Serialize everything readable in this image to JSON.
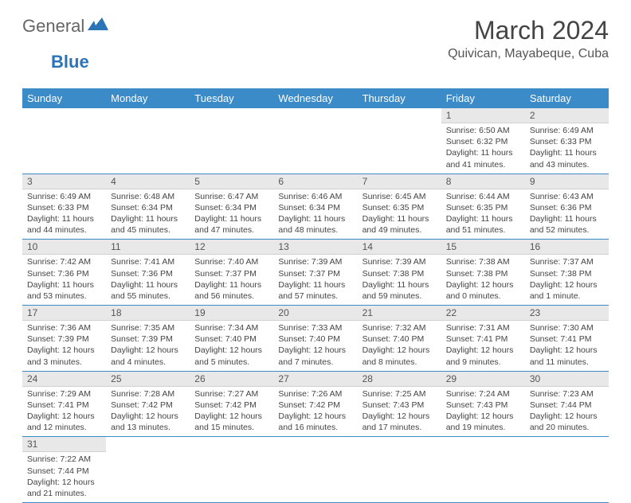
{
  "logo": {
    "part1": "General",
    "part2": "Blue"
  },
  "title": "March 2024",
  "location": "Quivican, Mayabeque, Cuba",
  "colors": {
    "header_bg": "#3b8bc9",
    "header_text": "#ffffff",
    "daynum_bg": "#e8e8e8",
    "row_divider": "#3b8bc9",
    "body_text": "#444444"
  },
  "weekdays": [
    "Sunday",
    "Monday",
    "Tuesday",
    "Wednesday",
    "Thursday",
    "Friday",
    "Saturday"
  ],
  "calendar": {
    "first_weekday_index": 5,
    "days": [
      {
        "n": 1,
        "sunrise": "6:50 AM",
        "sunset": "6:32 PM",
        "daylight": "11 hours and 41 minutes."
      },
      {
        "n": 2,
        "sunrise": "6:49 AM",
        "sunset": "6:33 PM",
        "daylight": "11 hours and 43 minutes."
      },
      {
        "n": 3,
        "sunrise": "6:49 AM",
        "sunset": "6:33 PM",
        "daylight": "11 hours and 44 minutes."
      },
      {
        "n": 4,
        "sunrise": "6:48 AM",
        "sunset": "6:34 PM",
        "daylight": "11 hours and 45 minutes."
      },
      {
        "n": 5,
        "sunrise": "6:47 AM",
        "sunset": "6:34 PM",
        "daylight": "11 hours and 47 minutes."
      },
      {
        "n": 6,
        "sunrise": "6:46 AM",
        "sunset": "6:34 PM",
        "daylight": "11 hours and 48 minutes."
      },
      {
        "n": 7,
        "sunrise": "6:45 AM",
        "sunset": "6:35 PM",
        "daylight": "11 hours and 49 minutes."
      },
      {
        "n": 8,
        "sunrise": "6:44 AM",
        "sunset": "6:35 PM",
        "daylight": "11 hours and 51 minutes."
      },
      {
        "n": 9,
        "sunrise": "6:43 AM",
        "sunset": "6:36 PM",
        "daylight": "11 hours and 52 minutes."
      },
      {
        "n": 10,
        "sunrise": "7:42 AM",
        "sunset": "7:36 PM",
        "daylight": "11 hours and 53 minutes."
      },
      {
        "n": 11,
        "sunrise": "7:41 AM",
        "sunset": "7:36 PM",
        "daylight": "11 hours and 55 minutes."
      },
      {
        "n": 12,
        "sunrise": "7:40 AM",
        "sunset": "7:37 PM",
        "daylight": "11 hours and 56 minutes."
      },
      {
        "n": 13,
        "sunrise": "7:39 AM",
        "sunset": "7:37 PM",
        "daylight": "11 hours and 57 minutes."
      },
      {
        "n": 14,
        "sunrise": "7:39 AM",
        "sunset": "7:38 PM",
        "daylight": "11 hours and 59 minutes."
      },
      {
        "n": 15,
        "sunrise": "7:38 AM",
        "sunset": "7:38 PM",
        "daylight": "12 hours and 0 minutes."
      },
      {
        "n": 16,
        "sunrise": "7:37 AM",
        "sunset": "7:38 PM",
        "daylight": "12 hours and 1 minute."
      },
      {
        "n": 17,
        "sunrise": "7:36 AM",
        "sunset": "7:39 PM",
        "daylight": "12 hours and 3 minutes."
      },
      {
        "n": 18,
        "sunrise": "7:35 AM",
        "sunset": "7:39 PM",
        "daylight": "12 hours and 4 minutes."
      },
      {
        "n": 19,
        "sunrise": "7:34 AM",
        "sunset": "7:40 PM",
        "daylight": "12 hours and 5 minutes."
      },
      {
        "n": 20,
        "sunrise": "7:33 AM",
        "sunset": "7:40 PM",
        "daylight": "12 hours and 7 minutes."
      },
      {
        "n": 21,
        "sunrise": "7:32 AM",
        "sunset": "7:40 PM",
        "daylight": "12 hours and 8 minutes."
      },
      {
        "n": 22,
        "sunrise": "7:31 AM",
        "sunset": "7:41 PM",
        "daylight": "12 hours and 9 minutes."
      },
      {
        "n": 23,
        "sunrise": "7:30 AM",
        "sunset": "7:41 PM",
        "daylight": "12 hours and 11 minutes."
      },
      {
        "n": 24,
        "sunrise": "7:29 AM",
        "sunset": "7:41 PM",
        "daylight": "12 hours and 12 minutes."
      },
      {
        "n": 25,
        "sunrise": "7:28 AM",
        "sunset": "7:42 PM",
        "daylight": "12 hours and 13 minutes."
      },
      {
        "n": 26,
        "sunrise": "7:27 AM",
        "sunset": "7:42 PM",
        "daylight": "12 hours and 15 minutes."
      },
      {
        "n": 27,
        "sunrise": "7:26 AM",
        "sunset": "7:42 PM",
        "daylight": "12 hours and 16 minutes."
      },
      {
        "n": 28,
        "sunrise": "7:25 AM",
        "sunset": "7:43 PM",
        "daylight": "12 hours and 17 minutes."
      },
      {
        "n": 29,
        "sunrise": "7:24 AM",
        "sunset": "7:43 PM",
        "daylight": "12 hours and 19 minutes."
      },
      {
        "n": 30,
        "sunrise": "7:23 AM",
        "sunset": "7:44 PM",
        "daylight": "12 hours and 20 minutes."
      },
      {
        "n": 31,
        "sunrise": "7:22 AM",
        "sunset": "7:44 PM",
        "daylight": "12 hours and 21 minutes."
      }
    ]
  },
  "labels": {
    "sunrise": "Sunrise:",
    "sunset": "Sunset:",
    "daylight": "Daylight:"
  }
}
